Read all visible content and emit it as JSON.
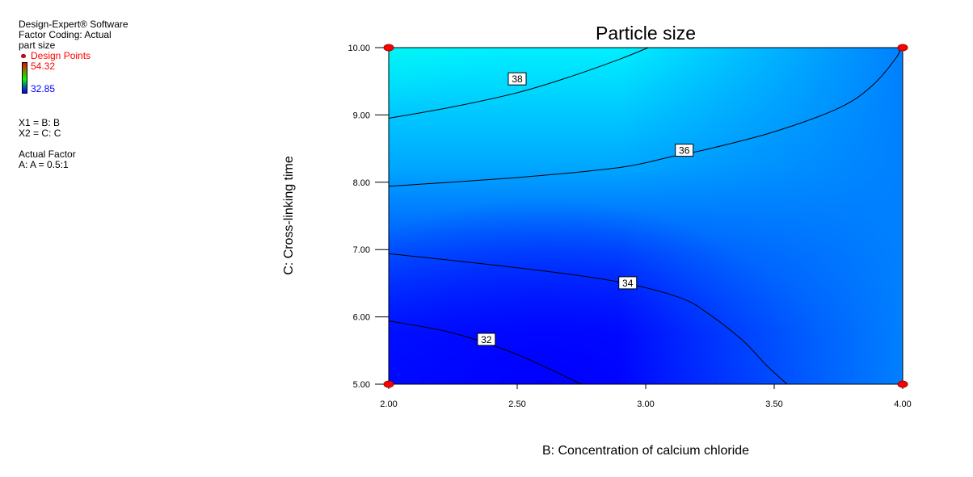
{
  "legend": {
    "software": "Design-Expert® Software",
    "factor_coding": "Factor Coding: Actual",
    "response": "part size",
    "design_points_label": "Design Points",
    "color_high": "54.32",
    "color_low": "32.85",
    "x1": "X1 = B: B",
    "x2": "X2 = C: C",
    "actual_factor_header": "Actual Factor",
    "actual_factor": "A: A = 0.5:1"
  },
  "colors": {
    "high": "#ff0000",
    "low": "#0000ff",
    "design_point": "#ff0000"
  },
  "chart_data": {
    "type": "contour",
    "title": "Particle size",
    "xlabel": "B: Concentration of calcium chloride",
    "ylabel": "C: Cross-linking time",
    "xlim": [
      2.0,
      4.0
    ],
    "ylim": [
      5.0,
      10.0
    ],
    "xticks": [
      "2.00",
      "2.50",
      "3.00",
      "3.50",
      "4.00"
    ],
    "xtick_values": [
      2.0,
      2.5,
      3.0,
      3.5,
      4.0
    ],
    "yticks": [
      "5.00",
      "6.00",
      "7.00",
      "8.00",
      "9.00",
      "10.00"
    ],
    "ytick_values": [
      5,
      6,
      7,
      8,
      9,
      10
    ],
    "grid": false,
    "response_range": [
      32.85,
      54.32
    ],
    "design_points": [
      {
        "x": 2.0,
        "y": 10.0
      },
      {
        "x": 4.0,
        "y": 10.0
      },
      {
        "x": 2.0,
        "y": 5.0
      },
      {
        "x": 4.0,
        "y": 5.0
      }
    ],
    "contours": [
      {
        "level": "38",
        "label_at": {
          "x": 2.5,
          "y": 9.53
        },
        "points": [
          [
            2.0,
            8.95
          ],
          [
            2.25,
            9.12
          ],
          [
            2.5,
            9.33
          ],
          [
            2.7,
            9.56
          ],
          [
            2.9,
            9.83
          ],
          [
            3.01,
            10.0
          ]
        ]
      },
      {
        "level": "36",
        "label_at": {
          "x": 3.15,
          "y": 8.47
        },
        "points": [
          [
            2.0,
            7.94
          ],
          [
            2.5,
            8.07
          ],
          [
            2.9,
            8.22
          ],
          [
            3.1,
            8.38
          ],
          [
            3.25,
            8.5
          ],
          [
            3.5,
            8.75
          ],
          [
            3.75,
            9.1
          ],
          [
            3.88,
            9.43
          ],
          [
            3.98,
            9.88
          ],
          [
            3.98,
            10.0
          ]
        ]
      },
      {
        "level": "34",
        "label_at": {
          "x": 2.93,
          "y": 6.5
        },
        "points": [
          [
            2.0,
            6.94
          ],
          [
            2.5,
            6.73
          ],
          [
            2.88,
            6.53
          ],
          [
            3.13,
            6.29
          ],
          [
            3.25,
            6.03
          ],
          [
            3.38,
            5.64
          ],
          [
            3.47,
            5.28
          ],
          [
            3.55,
            5.0
          ]
        ]
      },
      {
        "level": "32",
        "label_at": {
          "x": 2.38,
          "y": 5.66
        },
        "points": [
          [
            2.0,
            5.94
          ],
          [
            2.25,
            5.76
          ],
          [
            2.5,
            5.44
          ],
          [
            2.75,
            5.0
          ]
        ]
      }
    ]
  }
}
